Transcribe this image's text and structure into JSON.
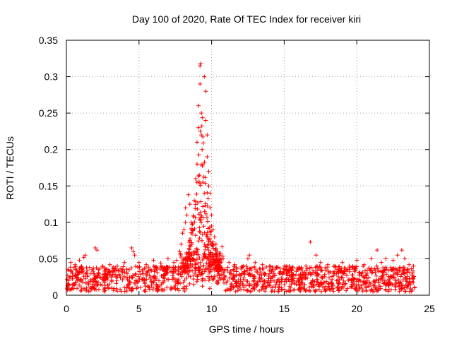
{
  "chart_data": {
    "type": "scatter",
    "title": "Day 100 of 2020, Rate Of TEC Index for receiver kiri",
    "xlabel": "GPS time / hours",
    "ylabel": "ROTI / TECUs",
    "xlim": [
      0,
      25
    ],
    "ylim": [
      0,
      0.35
    ],
    "xticks": [
      0,
      5,
      10,
      15,
      20,
      25
    ],
    "xtick_labels": [
      "0",
      "5",
      "10",
      "15",
      "20",
      "25"
    ],
    "yticks": [
      0,
      0.05,
      0.1,
      0.15,
      0.2,
      0.25,
      0.3,
      0.35
    ],
    "ytick_labels": [
      "0",
      "0.05",
      "0.1",
      "0.15",
      "0.2",
      "0.25",
      "0.3",
      "0.35"
    ],
    "grid": true,
    "marker": "+",
    "color": "#ff0000",
    "series": [
      {
        "name": "ROTI",
        "baseline_range": [
          0.005,
          0.04
        ],
        "points": [
          [
            0.1,
            0.035
          ],
          [
            0.3,
            0.045
          ],
          [
            0.6,
            0.042
          ],
          [
            0.9,
            0.048
          ],
          [
            1.2,
            0.052
          ],
          [
            1.3,
            0.055
          ],
          [
            1.6,
            0.038
          ],
          [
            2.0,
            0.065
          ],
          [
            2.1,
            0.062
          ],
          [
            2.5,
            0.04
          ],
          [
            3.0,
            0.042
          ],
          [
            3.5,
            0.04
          ],
          [
            4.0,
            0.045
          ],
          [
            4.5,
            0.065
          ],
          [
            4.6,
            0.06
          ],
          [
            4.7,
            0.055
          ],
          [
            5.0,
            0.045
          ],
          [
            5.5,
            0.042
          ],
          [
            6.0,
            0.048
          ],
          [
            6.5,
            0.044
          ],
          [
            7.0,
            0.05
          ],
          [
            7.4,
            0.045
          ],
          [
            7.6,
            0.048
          ],
          [
            7.8,
            0.06
          ],
          [
            7.9,
            0.07
          ],
          [
            8.0,
            0.085
          ],
          [
            8.1,
            0.09
          ],
          [
            8.2,
            0.1
          ],
          [
            8.2,
            0.12
          ],
          [
            8.3,
            0.11
          ],
          [
            8.4,
            0.138
          ],
          [
            8.5,
            0.125
          ],
          [
            8.6,
            0.1
          ],
          [
            8.7,
            0.09
          ],
          [
            8.8,
            0.13
          ],
          [
            8.9,
            0.16
          ],
          [
            9.0,
            0.18
          ],
          [
            9.0,
            0.21
          ],
          [
            9.1,
            0.23
          ],
          [
            9.1,
            0.26
          ],
          [
            9.2,
            0.29
          ],
          [
            9.2,
            0.315
          ],
          [
            9.25,
            0.318
          ],
          [
            9.3,
            0.25
          ],
          [
            9.3,
            0.22
          ],
          [
            9.35,
            0.2
          ],
          [
            9.4,
            0.18
          ],
          [
            9.4,
            0.155
          ],
          [
            9.5,
            0.14
          ],
          [
            9.5,
            0.3
          ],
          [
            9.6,
            0.28
          ],
          [
            9.6,
            0.24
          ],
          [
            9.7,
            0.22
          ],
          [
            9.7,
            0.19
          ],
          [
            9.8,
            0.17
          ],
          [
            9.8,
            0.15
          ],
          [
            9.9,
            0.14
          ],
          [
            9.9,
            0.12
          ],
          [
            10.0,
            0.11
          ],
          [
            10.0,
            0.095
          ],
          [
            10.1,
            0.09
          ],
          [
            10.2,
            0.08
          ],
          [
            10.3,
            0.07
          ],
          [
            10.4,
            0.06
          ],
          [
            10.6,
            0.058
          ],
          [
            10.8,
            0.05
          ],
          [
            11.2,
            0.045
          ],
          [
            11.6,
            0.042
          ],
          [
            12.2,
            0.04
          ],
          [
            12.5,
            0.05
          ],
          [
            12.6,
            0.055
          ],
          [
            13.0,
            0.045
          ],
          [
            13.5,
            0.042
          ],
          [
            14.0,
            0.04
          ],
          [
            14.5,
            0.038
          ],
          [
            15.0,
            0.04
          ],
          [
            15.5,
            0.035
          ],
          [
            16.0,
            0.038
          ],
          [
            16.5,
            0.04
          ],
          [
            16.8,
            0.073
          ],
          [
            17.2,
            0.055
          ],
          [
            17.5,
            0.045
          ],
          [
            18.0,
            0.042
          ],
          [
            18.5,
            0.04
          ],
          [
            19.0,
            0.045
          ],
          [
            19.5,
            0.04
          ],
          [
            20.0,
            0.048
          ],
          [
            20.5,
            0.042
          ],
          [
            21.0,
            0.05
          ],
          [
            21.4,
            0.062
          ],
          [
            21.7,
            0.045
          ],
          [
            22.0,
            0.05
          ],
          [
            22.5,
            0.048
          ],
          [
            22.8,
            0.055
          ],
          [
            23.1,
            0.062
          ],
          [
            23.3,
            0.05
          ],
          [
            23.6,
            0.042
          ],
          [
            23.9,
            0.04
          ]
        ]
      }
    ]
  }
}
